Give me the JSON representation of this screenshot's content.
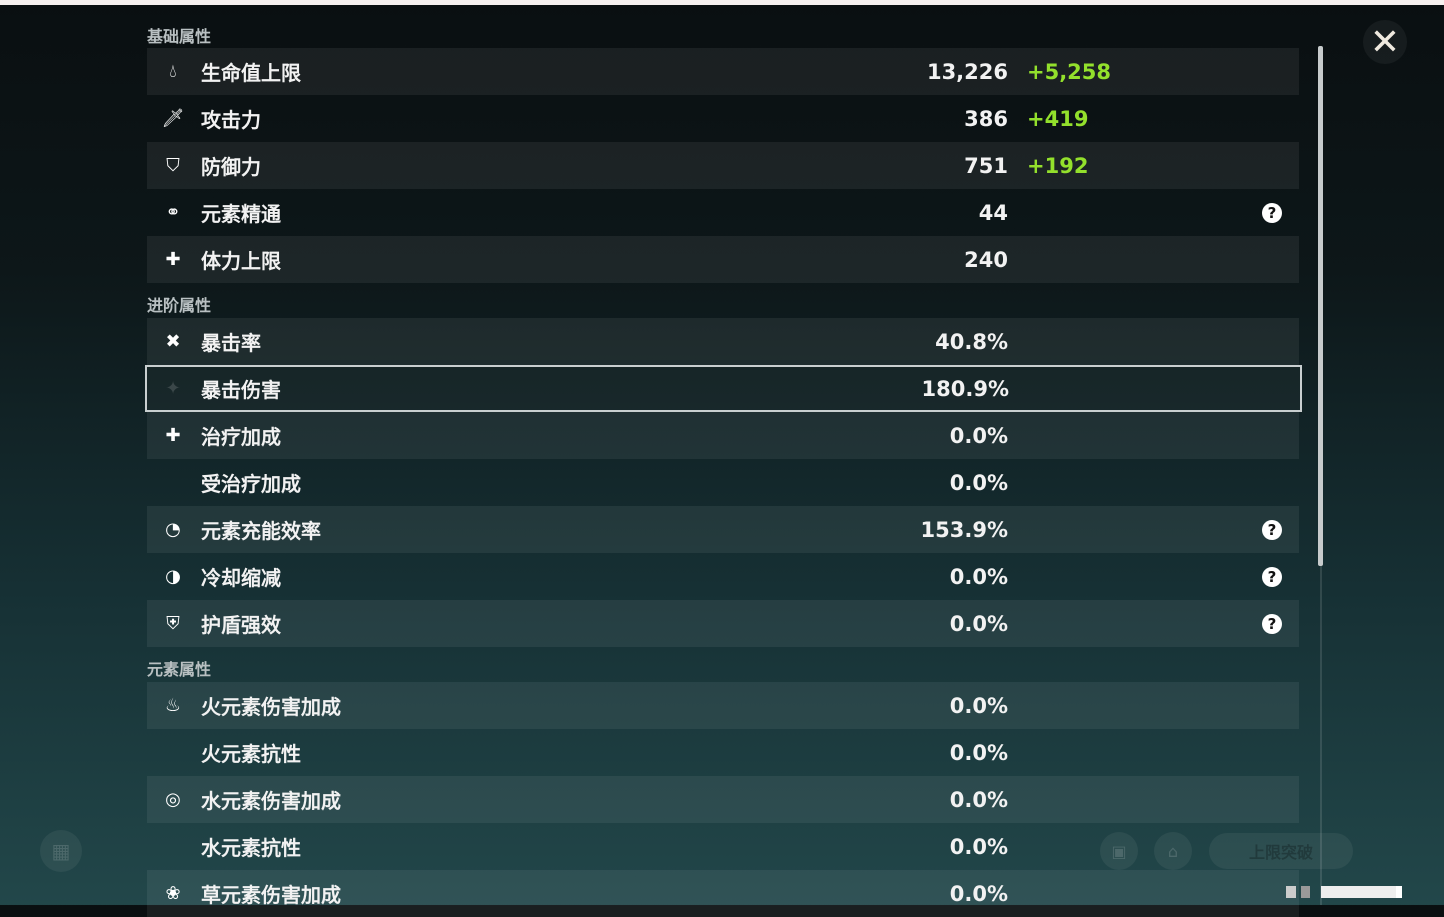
{
  "window": {
    "close_icon": "close-icon"
  },
  "sections": {
    "base": "基础属性",
    "advanced": "进阶属性",
    "elemental": "元素属性"
  },
  "base_stats": [
    {
      "icon": "hp-drop-icon",
      "label": "生命值上限",
      "value": "13,226",
      "bonus": "+5,258"
    },
    {
      "icon": "sword-icon",
      "label": "攻击力",
      "value": "386",
      "bonus": "+419"
    },
    {
      "icon": "shield-icon",
      "label": "防御力",
      "value": "751",
      "bonus": "+192"
    },
    {
      "icon": "elemental-mastery-icon",
      "label": "元素精通",
      "value": "44",
      "help": "?"
    },
    {
      "icon": "stamina-icon",
      "label": "体力上限",
      "value": "240"
    }
  ],
  "advanced_stats": [
    {
      "icon": "crit-rate-icon",
      "label": "暴击率",
      "value": "40.8%"
    },
    {
      "icon": "crit-dmg-icon",
      "label": "暴击伤害",
      "value": "180.9%",
      "selected": true
    },
    {
      "icon": "healing-icon",
      "label": "治疗加成",
      "value": "0.0%"
    },
    {
      "label": "受治疗加成",
      "value": "0.0%"
    },
    {
      "icon": "energy-recharge-icon",
      "label": "元素充能效率",
      "value": "153.9%",
      "help": "?"
    },
    {
      "icon": "cooldown-icon",
      "label": "冷却缩减",
      "value": "0.0%",
      "help": "?"
    },
    {
      "icon": "shield-strength-icon",
      "label": "护盾强效",
      "value": "0.0%",
      "help": "?"
    }
  ],
  "elemental_stats": [
    {
      "icon": "pyro-icon",
      "label": "火元素伤害加成",
      "value": "0.0%"
    },
    {
      "label": "火元素抗性",
      "value": "0.0%"
    },
    {
      "icon": "hydro-icon",
      "label": "水元素伤害加成",
      "value": "0.0%"
    },
    {
      "label": "水元素抗性",
      "value": "0.0%"
    },
    {
      "icon": "dendro-icon",
      "label": "草元素伤害加成",
      "value": "0.0%"
    }
  ],
  "background": {
    "ascend_label": "上限突破"
  },
  "colors": {
    "bonus": "#93e02c",
    "selected_border": "#c9cfd0"
  }
}
